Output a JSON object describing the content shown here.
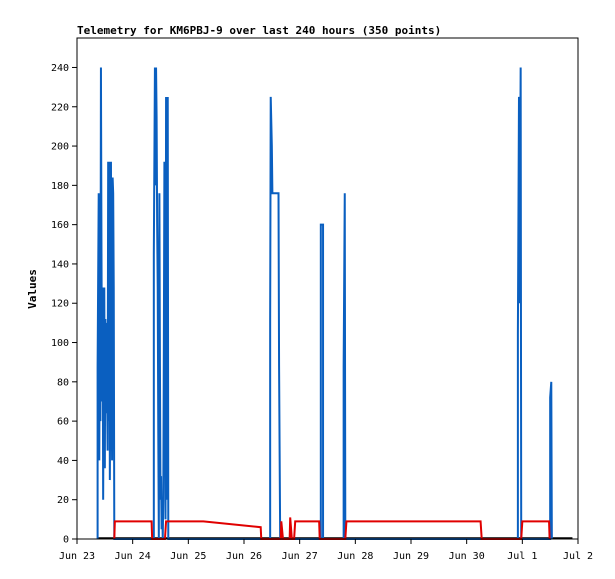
{
  "chart_data": {
    "type": "line",
    "title": "Telemetry for KM6PBJ-9 over last 240 hours (350 points)",
    "xlabel": "",
    "ylabel": "Values",
    "x_ticks": [
      "Jun 23",
      "Jun 24",
      "Jun 25",
      "Jun 26",
      "Jun 27",
      "Jun 28",
      "Jun 29",
      "Jun 30",
      "Jul 1",
      "Jul 2"
    ],
    "xlim": [
      0,
      9
    ],
    "y_ticks": [
      0,
      20,
      40,
      60,
      80,
      100,
      120,
      140,
      160,
      180,
      200,
      220,
      240
    ],
    "ylim": [
      0,
      255
    ],
    "grid": false,
    "legend": "none",
    "series": [
      {
        "color": "#0a5fc0",
        "points": [
          [
            0.37,
            0
          ],
          [
            0.37,
            88
          ],
          [
            0.39,
            176
          ],
          [
            0.4,
            40
          ],
          [
            0.41,
            112
          ],
          [
            0.42,
            60
          ],
          [
            0.43,
            240
          ],
          [
            0.44,
            145
          ],
          [
            0.45,
            70
          ],
          [
            0.46,
            128
          ],
          [
            0.47,
            20
          ],
          [
            0.48,
            95
          ],
          [
            0.49,
            128
          ],
          [
            0.5,
            36
          ],
          [
            0.51,
            112
          ],
          [
            0.52,
            64
          ],
          [
            0.53,
            110
          ],
          [
            0.54,
            80
          ],
          [
            0.55,
            45
          ],
          [
            0.56,
            192
          ],
          [
            0.57,
            60
          ],
          [
            0.58,
            192
          ],
          [
            0.59,
            30
          ],
          [
            0.6,
            88
          ],
          [
            0.61,
            192
          ],
          [
            0.62,
            97
          ],
          [
            0.63,
            40
          ],
          [
            0.64,
            184
          ],
          [
            0.65,
            176
          ],
          [
            0.66,
            128
          ],
          [
            0.67,
            0
          ],
          [
            1.38,
            0
          ],
          [
            1.38,
            145
          ],
          [
            1.4,
            240
          ],
          [
            1.41,
            180
          ],
          [
            1.42,
            240
          ],
          [
            1.43,
            215
          ],
          [
            1.44,
            160
          ],
          [
            1.45,
            128
          ],
          [
            1.46,
            56
          ],
          [
            1.47,
            0
          ],
          [
            1.48,
            176
          ],
          [
            1.49,
            88
          ],
          [
            1.5,
            20
          ],
          [
            1.51,
            32
          ],
          [
            1.52,
            5
          ],
          [
            1.53,
            20
          ],
          [
            1.54,
            0
          ],
          [
            1.55,
            20
          ],
          [
            1.56,
            96
          ],
          [
            1.57,
            192
          ],
          [
            1.58,
            105
          ],
          [
            1.59,
            10
          ],
          [
            1.6,
            225
          ],
          [
            1.61,
            112
          ],
          [
            1.62,
            20
          ],
          [
            1.63,
            225
          ],
          [
            1.64,
            0
          ],
          [
            3.47,
            0
          ],
          [
            3.47,
            112
          ],
          [
            3.48,
            225
          ],
          [
            3.5,
            200
          ],
          [
            3.51,
            176
          ],
          [
            3.62,
            176
          ],
          [
            3.63,
            88
          ],
          [
            3.65,
            0
          ],
          [
            4.38,
            0
          ],
          [
            4.38,
            160
          ],
          [
            4.42,
            160
          ],
          [
            4.42,
            0
          ],
          [
            4.79,
            0
          ],
          [
            4.79,
            88
          ],
          [
            4.81,
            176
          ],
          [
            4.82,
            0
          ],
          [
            7.92,
            0
          ],
          [
            7.92,
            104
          ],
          [
            7.94,
            225
          ],
          [
            7.95,
            120
          ],
          [
            7.97,
            240
          ],
          [
            7.98,
            0
          ],
          [
            8.5,
            0
          ],
          [
            8.5,
            72
          ],
          [
            8.52,
            80
          ],
          [
            8.53,
            0
          ]
        ]
      },
      {
        "color": "#e00000",
        "points": [
          [
            0.67,
            0
          ],
          [
            0.68,
            9
          ],
          [
            1.34,
            9
          ],
          [
            1.35,
            0
          ],
          [
            1.58,
            0
          ],
          [
            1.6,
            9
          ],
          [
            2.27,
            9
          ],
          [
            3.3,
            6
          ],
          [
            3.31,
            0
          ],
          [
            3.66,
            0
          ],
          [
            3.67,
            9
          ],
          [
            3.7,
            0
          ],
          [
            3.82,
            0
          ],
          [
            3.83,
            11
          ],
          [
            3.86,
            0
          ],
          [
            3.9,
            0
          ],
          [
            3.92,
            9
          ],
          [
            4.35,
            9
          ],
          [
            4.36,
            0
          ],
          [
            4.82,
            0
          ],
          [
            4.84,
            9
          ],
          [
            7.25,
            9
          ],
          [
            7.27,
            0
          ],
          [
            7.98,
            0
          ],
          [
            8.0,
            9
          ],
          [
            8.48,
            9
          ],
          [
            8.49,
            0
          ]
        ]
      }
    ]
  }
}
